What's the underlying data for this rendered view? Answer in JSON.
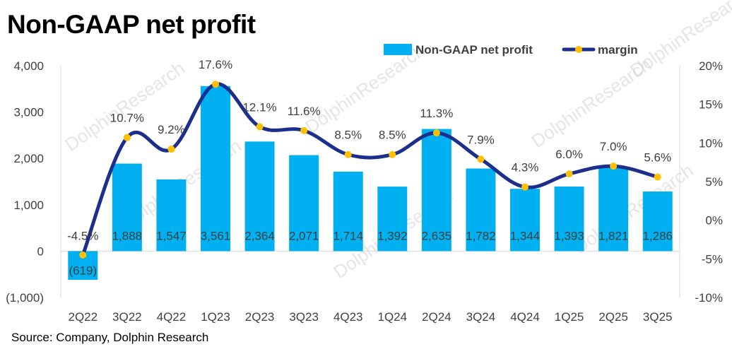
{
  "title": "Non-GAAP net profit",
  "source": "Source: Company, Dolphin Research",
  "watermark": "DolphinResearch",
  "chart_data": {
    "type": "bar",
    "categories": [
      "2Q22",
      "3Q22",
      "4Q22",
      "1Q23",
      "2Q23",
      "3Q23",
      "4Q23",
      "1Q24",
      "2Q24",
      "3Q24",
      "4Q24",
      "1Q25",
      "2Q25",
      "3Q25"
    ],
    "series": [
      {
        "name": "Non-GAAP net profit",
        "type": "bar",
        "axis": "left",
        "color": "#00b0f0",
        "values": [
          -619,
          1888,
          1547,
          3561,
          2364,
          2071,
          1714,
          1392,
          2635,
          1782,
          1344,
          1393,
          1821,
          1286
        ],
        "labels": [
          "(619)",
          "1,888",
          "1,547",
          "3,561",
          "2,364",
          "2,071",
          "1,714",
          "1,392",
          "2,635",
          "1,782",
          "1,344",
          "1,393",
          "1,821",
          "1,286"
        ]
      },
      {
        "name": "margin",
        "type": "line",
        "axis": "right",
        "color": "#1c2f8c",
        "marker_color": "#ffc000",
        "values": [
          -4.5,
          10.7,
          9.2,
          17.6,
          12.1,
          11.6,
          8.5,
          8.5,
          11.3,
          7.9,
          4.3,
          6.0,
          7.0,
          5.6
        ],
        "labels": [
          "-4.5%",
          "10.7%",
          "9.2%",
          "17.6%",
          "12.1%",
          "11.6%",
          "8.5%",
          "8.5%",
          "11.3%",
          "7.9%",
          "4.3%",
          "6.0%",
          "7.0%",
          "5.6%"
        ]
      }
    ],
    "ylim": [
      -1000,
      4000
    ],
    "yticks": [
      -1000,
      0,
      1000,
      2000,
      3000,
      4000
    ],
    "ytick_labels": [
      "(1,000)",
      "0",
      "1,000",
      "2,000",
      "3,000",
      "4,000"
    ],
    "y2lim": [
      -10,
      20
    ],
    "y2ticks": [
      -10,
      -5,
      0,
      5,
      10,
      15,
      20
    ],
    "y2tick_labels": [
      "-10%",
      "-5%",
      "0%",
      "5%",
      "10%",
      "15%",
      "20%"
    ],
    "legend_position": "top-right",
    "grid": false
  }
}
